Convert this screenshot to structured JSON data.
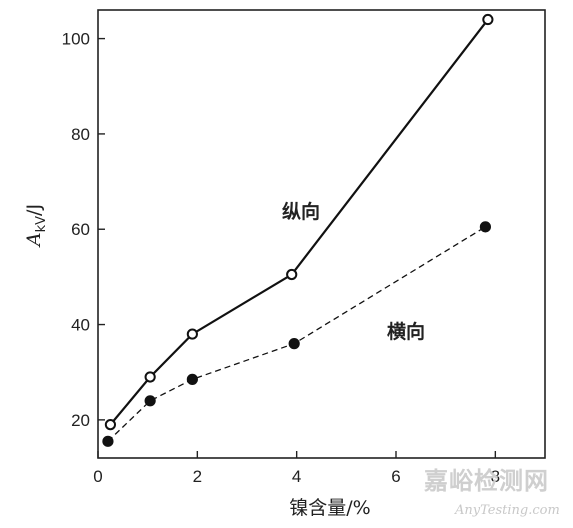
{
  "chart_data": {
    "type": "line",
    "xlabel": "镍含量/%",
    "ylabel": {
      "main": "A",
      "sub": "kV",
      "unit": "/J"
    },
    "xlim": [
      0,
      9
    ],
    "ylim": [
      12,
      106
    ],
    "xticks": [
      0,
      2,
      4,
      6,
      8
    ],
    "yticks": [
      20,
      40,
      60,
      80,
      100
    ],
    "grid": false,
    "series": [
      {
        "name": "纵向",
        "style": "solid",
        "marker": "open-circle",
        "x": [
          0.25,
          1.05,
          1.9,
          3.9,
          7.85
        ],
        "y": [
          19,
          29,
          38,
          50.5,
          104
        ]
      },
      {
        "name": "横向",
        "style": "dashed",
        "marker": "filled-circle",
        "x": [
          0.2,
          1.05,
          1.9,
          3.95,
          7.8
        ],
        "y": [
          15.5,
          24,
          28.5,
          36,
          60.5
        ]
      }
    ]
  },
  "watermark": {
    "text_cn": "嘉峪检测网",
    "text_en": "AnyTesting.com"
  }
}
